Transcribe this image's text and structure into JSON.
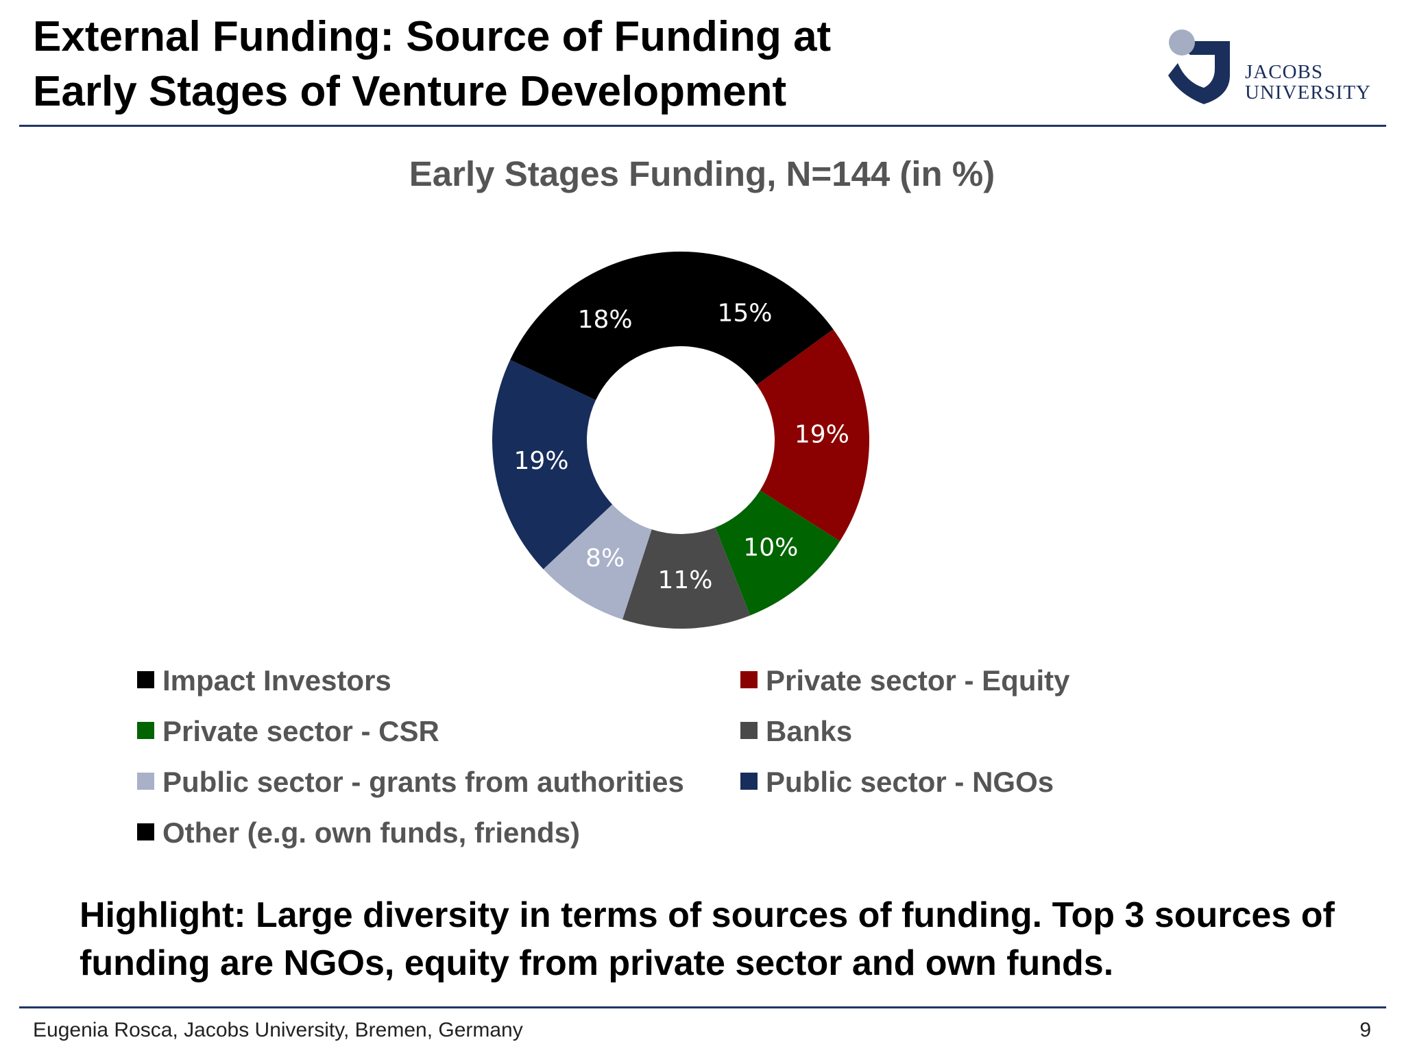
{
  "slide": {
    "title_line1": "External Funding: Source of Funding at",
    "title_line2": "Early Stages of Venture Development",
    "logo": {
      "line1": "JACOBS",
      "line2": "UNIVERSITY",
      "icon": "jacobs-university-logo-icon"
    },
    "highlight": "Highlight: Large diversity in terms of sources of funding. Top 3 sources of funding are NGOs, equity from private sector and own funds.",
    "footer_left": "Eugenia Rosca, Jacobs University, Bremen, Germany",
    "page_number": "9",
    "accent_color": "#1f3566"
  },
  "chart_data": {
    "type": "pie",
    "variant": "donut",
    "title": "Early Stages Funding, N=144 (in %)",
    "unit": "%",
    "legend_position": "bottom",
    "categories": [
      "Impact Investors",
      "Private sector - Equity",
      "Private sector - CSR",
      "Banks",
      "Public sector - grants from authorities",
      "Public sector - NGOs",
      "Other (e.g. own funds, friends)"
    ],
    "values": [
      15,
      19,
      10,
      11,
      8,
      19,
      18
    ],
    "labels": [
      "15%",
      "19%",
      "10%",
      "11%",
      "8%",
      "19%",
      "18%"
    ],
    "colors": [
      "#000000",
      "#8b0000",
      "#006400",
      "#4a4a4a",
      "#a9b1c8",
      "#172d5c",
      "#000000"
    ]
  }
}
